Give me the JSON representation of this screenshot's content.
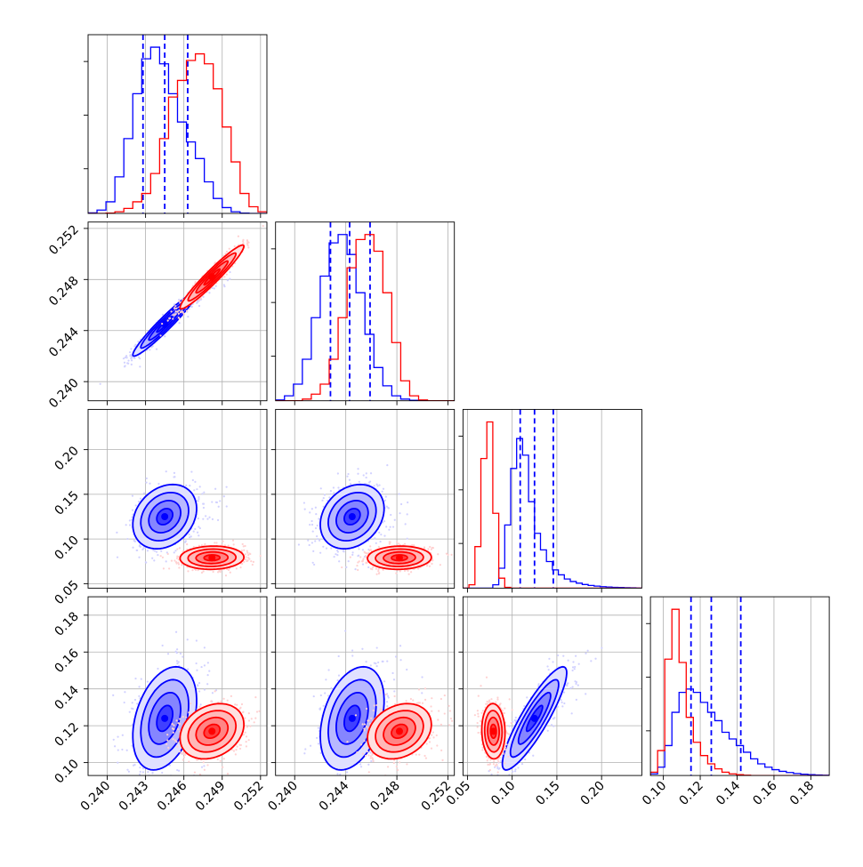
{
  "colors": {
    "blue": "#0000ff",
    "red": "#ff0000"
  },
  "chart_data": {
    "type": "corner",
    "grid": true,
    "ranges": [
      [
        0.2385,
        0.2525
      ],
      [
        0.2385,
        0.2525
      ],
      [
        0.045,
        0.245
      ],
      [
        0.093,
        0.19
      ]
    ],
    "tick_labels": [
      [
        "0.240",
        "0.243",
        "0.246",
        "0.249",
        "0.252"
      ],
      [
        "0.240",
        "0.244",
        "0.248",
        "0.252"
      ],
      [
        "0.05",
        "0.10",
        "0.15",
        "0.20"
      ],
      [
        "0.10",
        "0.12",
        "0.14",
        "0.16",
        "0.18"
      ]
    ],
    "series": [
      {
        "color": "blue",
        "center": [
          0.2445,
          0.2445,
          0.125,
          0.124
        ],
        "sd": [
          0.00125,
          0.00125,
          0.018,
          0.014
        ],
        "corr": [
          [
            1,
            0.96,
            0.25,
            0.35
          ],
          [
            0.96,
            1,
            0.25,
            0.35
          ],
          [
            0.25,
            0.25,
            1,
            0.88
          ],
          [
            0.35,
            0.35,
            0.88,
            1
          ]
        ],
        "quantiles": [
          [
            0.2428,
            0.2445,
            0.2463
          ],
          [
            0.2428,
            0.2443,
            0.2459
          ],
          [
            0.109,
            0.125,
            0.146
          ],
          [
            0.115,
            0.126,
            0.142
          ]
        ],
        "hist": [
          [
            0.003,
            0.02,
            0.07,
            0.22,
            0.45,
            0.72,
            0.93,
            1.0,
            0.9,
            0.72,
            0.55,
            0.43,
            0.33,
            0.19,
            0.09,
            0.035,
            0.01,
            0.002,
            0,
            0
          ],
          [
            0.005,
            0.03,
            0.1,
            0.25,
            0.5,
            0.75,
            0.95,
            1.0,
            0.88,
            0.65,
            0.4,
            0.2,
            0.09,
            0.03,
            0.01,
            0.003,
            0,
            0,
            0,
            0
          ],
          [
            0,
            0,
            0,
            0,
            0,
            0.02,
            0.12,
            0.38,
            0.72,
            0.9,
            0.8,
            0.52,
            0.33,
            0.23,
            0.16,
            0.11,
            0.08,
            0.055,
            0.04,
            0.03,
            0.022,
            0.016,
            0.012,
            0.009,
            0.007,
            0.005,
            0.004,
            0.003,
            0.002,
            0.001
          ],
          [
            0.01,
            0.05,
            0.18,
            0.38,
            0.5,
            0.52,
            0.5,
            0.44,
            0.38,
            0.33,
            0.26,
            0.22,
            0.18,
            0.14,
            0.1,
            0.07,
            0.05,
            0.035,
            0.025,
            0.018,
            0.012,
            0.008,
            0.005,
            0.003,
            0.002
          ]
        ]
      },
      {
        "color": "red",
        "center": [
          0.2482,
          0.2482,
          0.079,
          0.117
        ],
        "sd": [
          0.00125,
          0.00125,
          0.0065,
          0.0075
        ],
        "corr": [
          [
            1,
            0.96,
            0.05,
            0.25
          ],
          [
            0.96,
            1,
            0.05,
            0.25
          ],
          [
            0.05,
            0.05,
            1,
            -0.05
          ],
          [
            0.25,
            0.25,
            -0.05,
            1
          ]
        ],
        "hist": [
          [
            0,
            0,
            0.002,
            0.01,
            0.03,
            0.07,
            0.12,
            0.24,
            0.45,
            0.7,
            0.8,
            0.92,
            0.96,
            0.9,
            0.75,
            0.52,
            0.31,
            0.12,
            0.04,
            0.01
          ],
          [
            0,
            0,
            0,
            0.01,
            0.04,
            0.1,
            0.25,
            0.5,
            0.8,
            0.97,
            1.0,
            0.9,
            0.65,
            0.35,
            0.12,
            0.03,
            0.005,
            0,
            0,
            0
          ],
          [
            0,
            0.02,
            0.25,
            0.78,
            1.0,
            0.45,
            0.06,
            0.005,
            0,
            0,
            0,
            0,
            0,
            0,
            0,
            0,
            0,
            0,
            0,
            0,
            0,
            0,
            0,
            0,
            0,
            0,
            0,
            0,
            0,
            0
          ],
          [
            0.02,
            0.15,
            0.7,
            1.0,
            0.68,
            0.35,
            0.2,
            0.12,
            0.07,
            0.04,
            0.02,
            0.01,
            0.005,
            0.002,
            0,
            0,
            0,
            0,
            0,
            0,
            0,
            0,
            0,
            0,
            0
          ]
        ]
      }
    ]
  }
}
